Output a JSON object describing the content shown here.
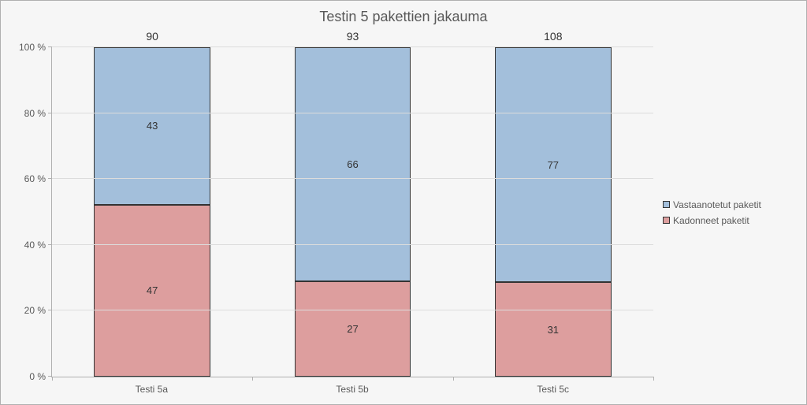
{
  "chart": {
    "type": "stacked-bar-100pct",
    "title": "Testin 5 pakettien jakauma",
    "title_fontsize": 18,
    "background_color": "#f6f6f6",
    "border_color": "#b0b0b0",
    "grid_color": "#dcdcdc",
    "text_color": "#595959",
    "font_family": "Segoe UI",
    "label_fontsize": 12,
    "data_label_fontsize": 13,
    "total_label_fontsize": 14,
    "categories": [
      "Testi 5a",
      "Testi 5b",
      "Testi 5c"
    ],
    "totals": [
      90,
      93,
      108
    ],
    "series": [
      {
        "name": "Vastaanotetut paketit",
        "color": "#a3bfdb",
        "values": [
          43,
          66,
          77
        ]
      },
      {
        "name": "Kadonneet paketit",
        "color": "#dd9e9e",
        "values": [
          47,
          27,
          31
        ]
      }
    ],
    "bar_width_pct": 58,
    "segment_border_color": "#333333",
    "y_axis": {
      "min_pct": 0,
      "max_pct": 100,
      "tick_step_pct": 20,
      "tick_format_suffix": " %"
    }
  }
}
